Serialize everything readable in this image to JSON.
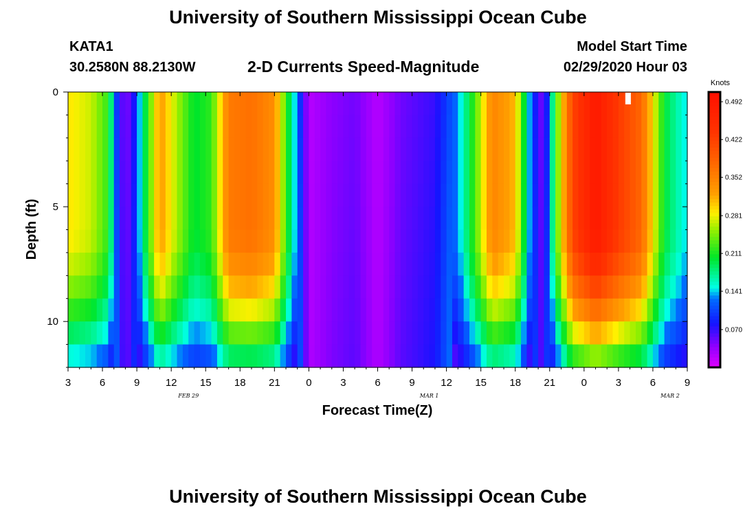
{
  "header": {
    "title": "University of Southern Mississippi Ocean Cube",
    "station": "KATA1",
    "coords": "30.2580N 88.2130W",
    "subtitle": "2-D Currents Speed-Magnitude",
    "model_label": "Model Start Time",
    "model_time": "02/29/2020 Hour 03"
  },
  "footer": {
    "title": "University of Southern Mississippi Ocean Cube"
  },
  "chart_data": {
    "type": "heatmap",
    "title": "2-D Currents Speed-Magnitude",
    "xlabel": "Forecast Time(Z)",
    "ylabel": "Depth (ft)",
    "x_start_hour": 3,
    "x_end_hour": 57,
    "x_tick_hours": [
      3,
      6,
      9,
      12,
      15,
      18,
      21,
      24,
      27,
      30,
      33,
      36,
      39,
      42,
      45,
      48,
      51,
      54,
      57
    ],
    "x_tick_labels": [
      "3",
      "6",
      "9",
      "12",
      "15",
      "18",
      "21",
      "0",
      "3",
      "6",
      "9",
      "12",
      "15",
      "18",
      "21",
      "0",
      "3",
      "6",
      "9"
    ],
    "day_labels": [
      {
        "hour": 13.5,
        "text": "FEB 29"
      },
      {
        "hour": 34.5,
        "text": "MAR 1"
      },
      {
        "hour": 55.5,
        "text": "MAR 2"
      }
    ],
    "y_range_ft": [
      0,
      12
    ],
    "y_ticks": [
      0,
      5,
      10
    ],
    "y_tick_labels": [
      "0",
      "5",
      "10"
    ],
    "colorbar": {
      "unit_label": "Knots",
      "min": 0.0,
      "max": 0.51,
      "tick_values": [
        0.492,
        0.422,
        0.352,
        0.281,
        0.211,
        0.141,
        0.07
      ],
      "tick_labels": [
        "0.492",
        "0.422",
        "0.352",
        "0.281",
        "0.211",
        "0.141",
        "0.070"
      ]
    },
    "surface_peaks_knots": [
      {
        "hour": 3,
        "value": 0.29
      },
      {
        "hour": 5,
        "value": 0.27
      },
      {
        "hour": 6.5,
        "value": 0.22
      },
      {
        "hour": 7.5,
        "value": 0.06
      },
      {
        "hour": 8.5,
        "value": 0.05
      },
      {
        "hour": 9.5,
        "value": 0.17
      },
      {
        "hour": 11,
        "value": 0.33
      },
      {
        "hour": 12.5,
        "value": 0.26
      },
      {
        "hour": 14,
        "value": 0.2
      },
      {
        "hour": 15.5,
        "value": 0.22
      },
      {
        "hour": 17,
        "value": 0.36
      },
      {
        "hour": 19,
        "value": 0.37
      },
      {
        "hour": 21,
        "value": 0.34
      },
      {
        "hour": 22.5,
        "value": 0.17
      },
      {
        "hour": 24,
        "value": 0.02
      },
      {
        "hour": 26,
        "value": 0.04
      },
      {
        "hour": 28,
        "value": 0.05
      },
      {
        "hour": 30,
        "value": 0.02
      },
      {
        "hour": 32,
        "value": 0.05
      },
      {
        "hour": 35,
        "value": 0.07
      },
      {
        "hour": 37,
        "value": 0.13
      },
      {
        "hour": 38.5,
        "value": 0.23
      },
      {
        "hour": 40,
        "value": 0.35
      },
      {
        "hour": 42,
        "value": 0.31
      },
      {
        "hour": 43.5,
        "value": 0.1
      },
      {
        "hour": 44.5,
        "value": 0.04
      },
      {
        "hour": 45.5,
        "value": 0.22
      },
      {
        "hour": 47,
        "value": 0.42
      },
      {
        "hour": 49,
        "value": 0.49
      },
      {
        "hour": 51,
        "value": 0.43
      },
      {
        "hour": 53,
        "value": 0.38
      },
      {
        "hour": 55,
        "value": 0.2
      },
      {
        "hour": 57,
        "value": 0.14
      }
    ]
  }
}
